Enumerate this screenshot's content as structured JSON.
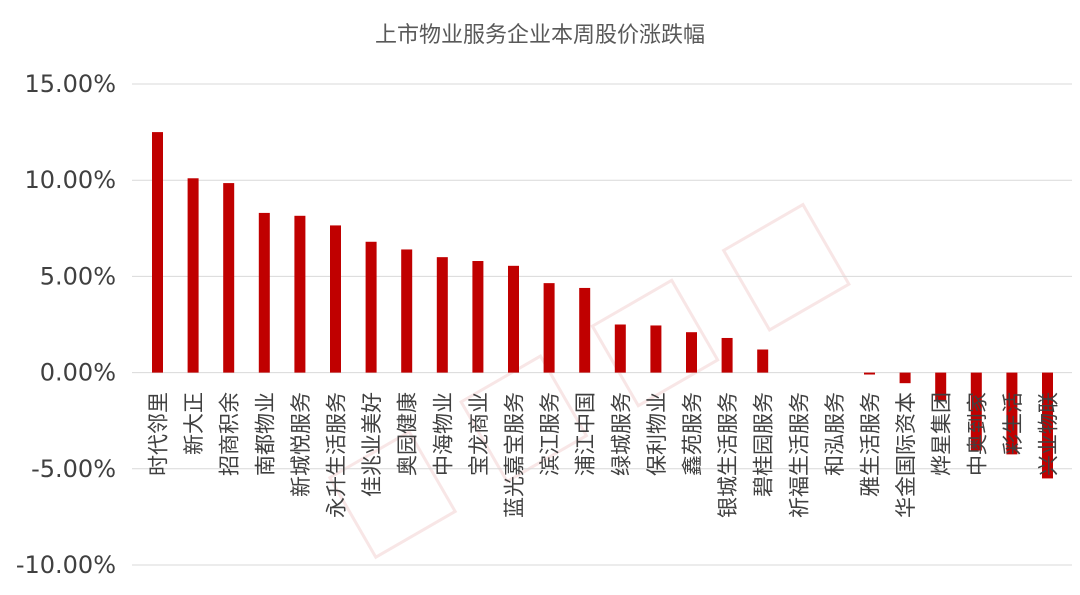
{
  "chart_data": {
    "type": "bar",
    "title": "上市物业服务企业本周股价涨跌幅",
    "xlabel": "",
    "ylabel": "",
    "ylim": [
      -10,
      15
    ],
    "yticks": [
      15,
      10,
      5,
      0,
      -5,
      -10
    ],
    "ytick_labels": [
      "15.00%",
      "10.00%",
      "5.00%",
      "0.00%",
      "-5.00%",
      "-10.00%"
    ],
    "grid": true,
    "legend": "none",
    "bar_color": "#c00000",
    "categories": [
      "时代邻里",
      "新大正",
      "招商积余",
      "南都物业",
      "新城悦服务",
      "永升生活服务",
      "佳兆业美好",
      "奥园健康",
      "中海物业",
      "宝龙商业",
      "蓝光嘉宝服务",
      "滨江服务",
      "浦江中国",
      "绿城服务",
      "保利物业",
      "鑫苑服务",
      "银城生活服务",
      "碧桂园服务",
      "祈福生活服务",
      "和泓服务",
      "雅生活服务",
      "华金国际资本",
      "烨星集团",
      "中奥到家",
      "彩生活",
      "兴业物联"
    ],
    "values": [
      12.5,
      10.1,
      9.85,
      8.3,
      8.15,
      7.65,
      6.8,
      6.4,
      6.0,
      5.8,
      5.55,
      4.65,
      4.4,
      2.5,
      2.45,
      2.1,
      1.8,
      1.2,
      0.0,
      0.0,
      -0.1,
      -0.55,
      -1.45,
      -4.05,
      -4.25,
      -5.5
    ]
  }
}
